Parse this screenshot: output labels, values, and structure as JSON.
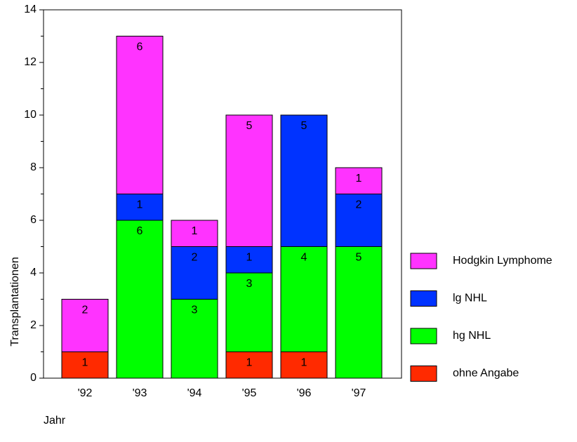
{
  "chart_data": {
    "type": "stacked-bar",
    "x_label": "Jahr",
    "y_label": "Transplantationen",
    "categories": [
      "'92",
      "'93",
      "'94",
      "'95",
      "'96",
      "'97"
    ],
    "series": [
      {
        "name": "ohne Angabe",
        "color": "#ff2a00",
        "values": [
          1,
          0,
          0,
          1,
          1,
          0
        ]
      },
      {
        "name": "hg NHL",
        "color": "#00ff00",
        "values": [
          0,
          6,
          3,
          3,
          4,
          5
        ]
      },
      {
        "name": "lg NHL",
        "color": "#0033ff",
        "values": [
          0,
          1,
          2,
          1,
          5,
          2
        ]
      },
      {
        "name": "Hodgkin Lymphome",
        "color": "#ff33ff",
        "values": [
          2,
          6,
          1,
          5,
          0,
          1
        ]
      }
    ],
    "ylim": [
      0,
      14
    ],
    "yticks": [
      0,
      2,
      4,
      6,
      8,
      10,
      12,
      14
    ],
    "legend": "right"
  }
}
